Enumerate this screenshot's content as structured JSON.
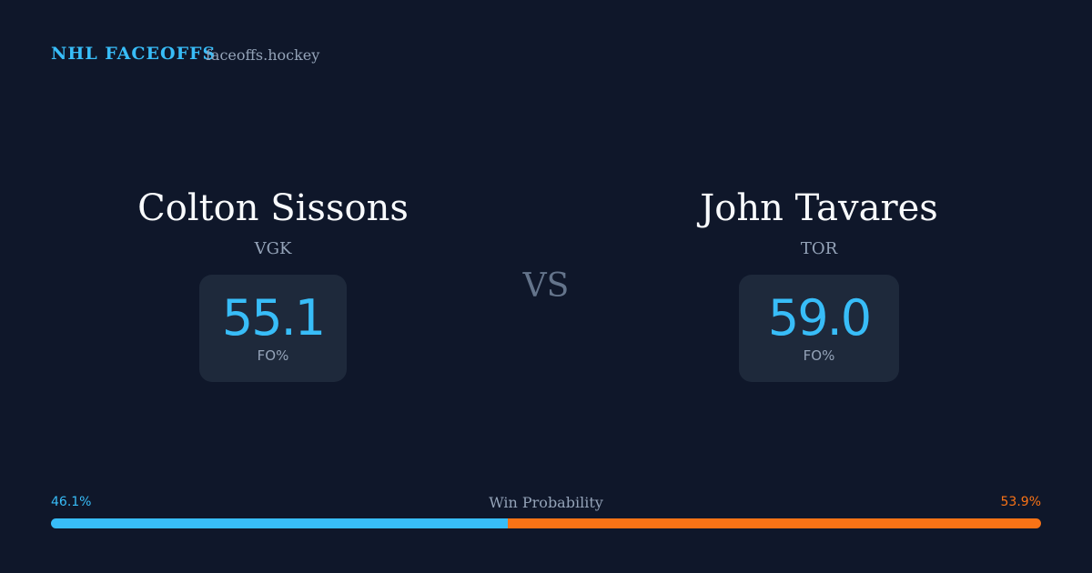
{
  "header": {
    "brand": "NHL FACEOFFS",
    "site": "faceoffs.hockey"
  },
  "players": [
    {
      "name": "Colton Sissons",
      "team": "VGK",
      "fo_pct": "55.1",
      "stat_label": "FO%"
    },
    {
      "name": "John Tavares",
      "team": "TOR",
      "fo_pct": "59.0",
      "stat_label": "FO%"
    }
  ],
  "vs": "VS",
  "win_probability": {
    "label": "Win Probability",
    "values": [
      46.1,
      53.9
    ],
    "value_labels": [
      "46.1%",
      "53.9%"
    ],
    "colors": [
      "#38bdf8",
      "#f97316"
    ]
  }
}
